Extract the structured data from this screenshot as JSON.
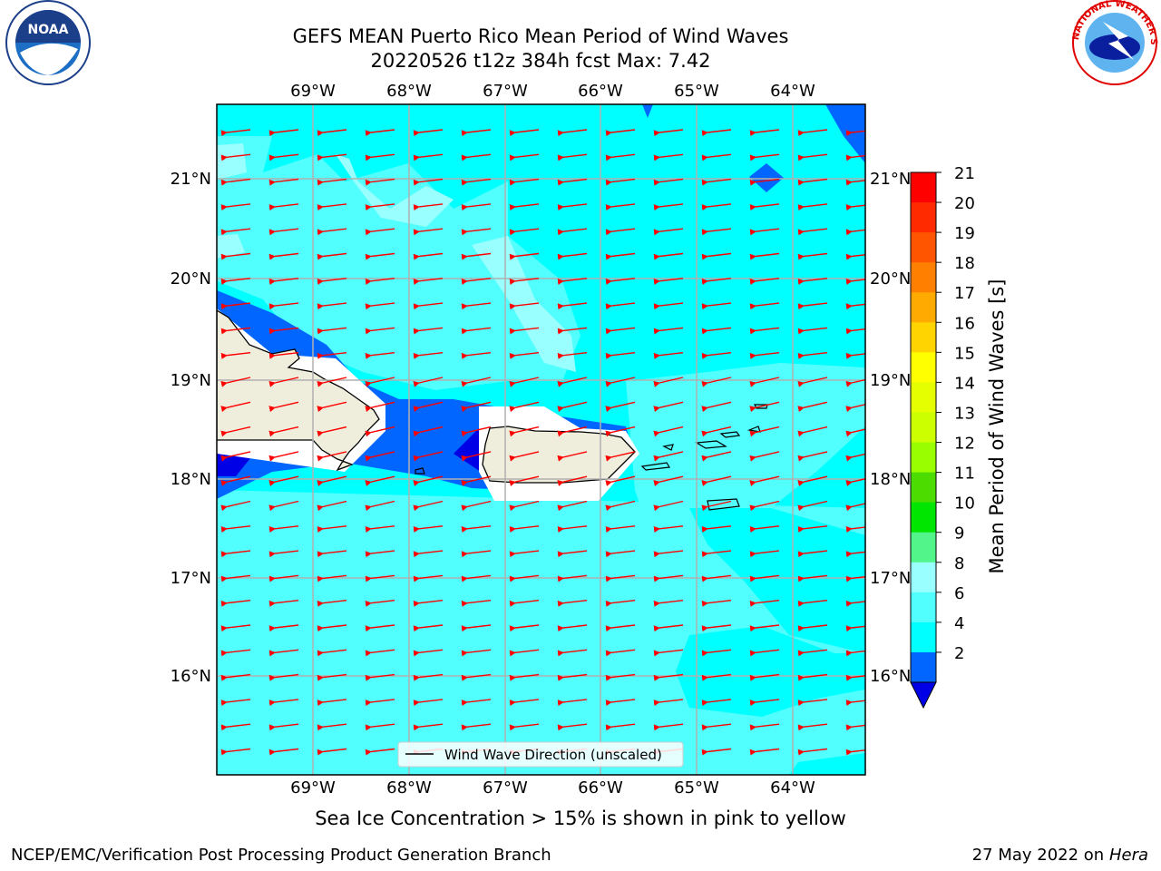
{
  "header": {
    "title_line1": "GEFS MEAN Puerto Rico Mean Period of Wind Waves",
    "title_line2": "20220526 t12z 384h fcst   Max: 7.42"
  },
  "logos": {
    "noaa_text": "NOAA",
    "noaa_ring_text": "NATIONAL OCEANIC AND ATMOSPHERIC ADMINISTRATION • U.S. DEPARTMENT OF COMMERCE",
    "nws_ring_text": "NATIONAL WEATHER SERVICE"
  },
  "map": {
    "lon_labels": [
      "69°W",
      "68°W",
      "67°W",
      "66°W",
      "65°W",
      "64°W"
    ],
    "lat_labels": [
      "21°N",
      "20°N",
      "19°N",
      "18°N",
      "17°N",
      "16°N"
    ],
    "legend_label": "Wind Wave Direction (unscaled)",
    "colors": {
      "ocean_fill": "#00ffff",
      "light_cyan": "#52ffff",
      "pale_cyan": "#99ffff",
      "blue": "#0066ff",
      "dark_blue": "#0000e6",
      "land": "#efeddc",
      "arrow": "#ff0000"
    }
  },
  "colorbar": {
    "label": "Mean Period of Wind Waves [s]",
    "ticks": [
      "21",
      "20",
      "19",
      "18",
      "17",
      "16",
      "15",
      "14",
      "13",
      "12",
      "11",
      "10",
      "9",
      "8",
      "6",
      "4",
      "2"
    ],
    "colors": [
      "#ff0000",
      "#ff2a00",
      "#ff5500",
      "#ff8000",
      "#ffaa00",
      "#ffd400",
      "#ffff00",
      "#e6ff00",
      "#ccff00",
      "#99ff00",
      "#4ddc00",
      "#00e600",
      "#52f58a",
      "#99ffff",
      "#52ffff",
      "#00ffff",
      "#0066ff"
    ],
    "extend_color": "#0000e6"
  },
  "footer": {
    "note": "Sea Ice Concentration > 15% is shown in pink to yellow",
    "credit_left": "NCEP/EMC/Verification Post Processing Product Generation Branch",
    "credit_right_prefix": "27 May 2022 on",
    "credit_right_host": "Hera"
  }
}
